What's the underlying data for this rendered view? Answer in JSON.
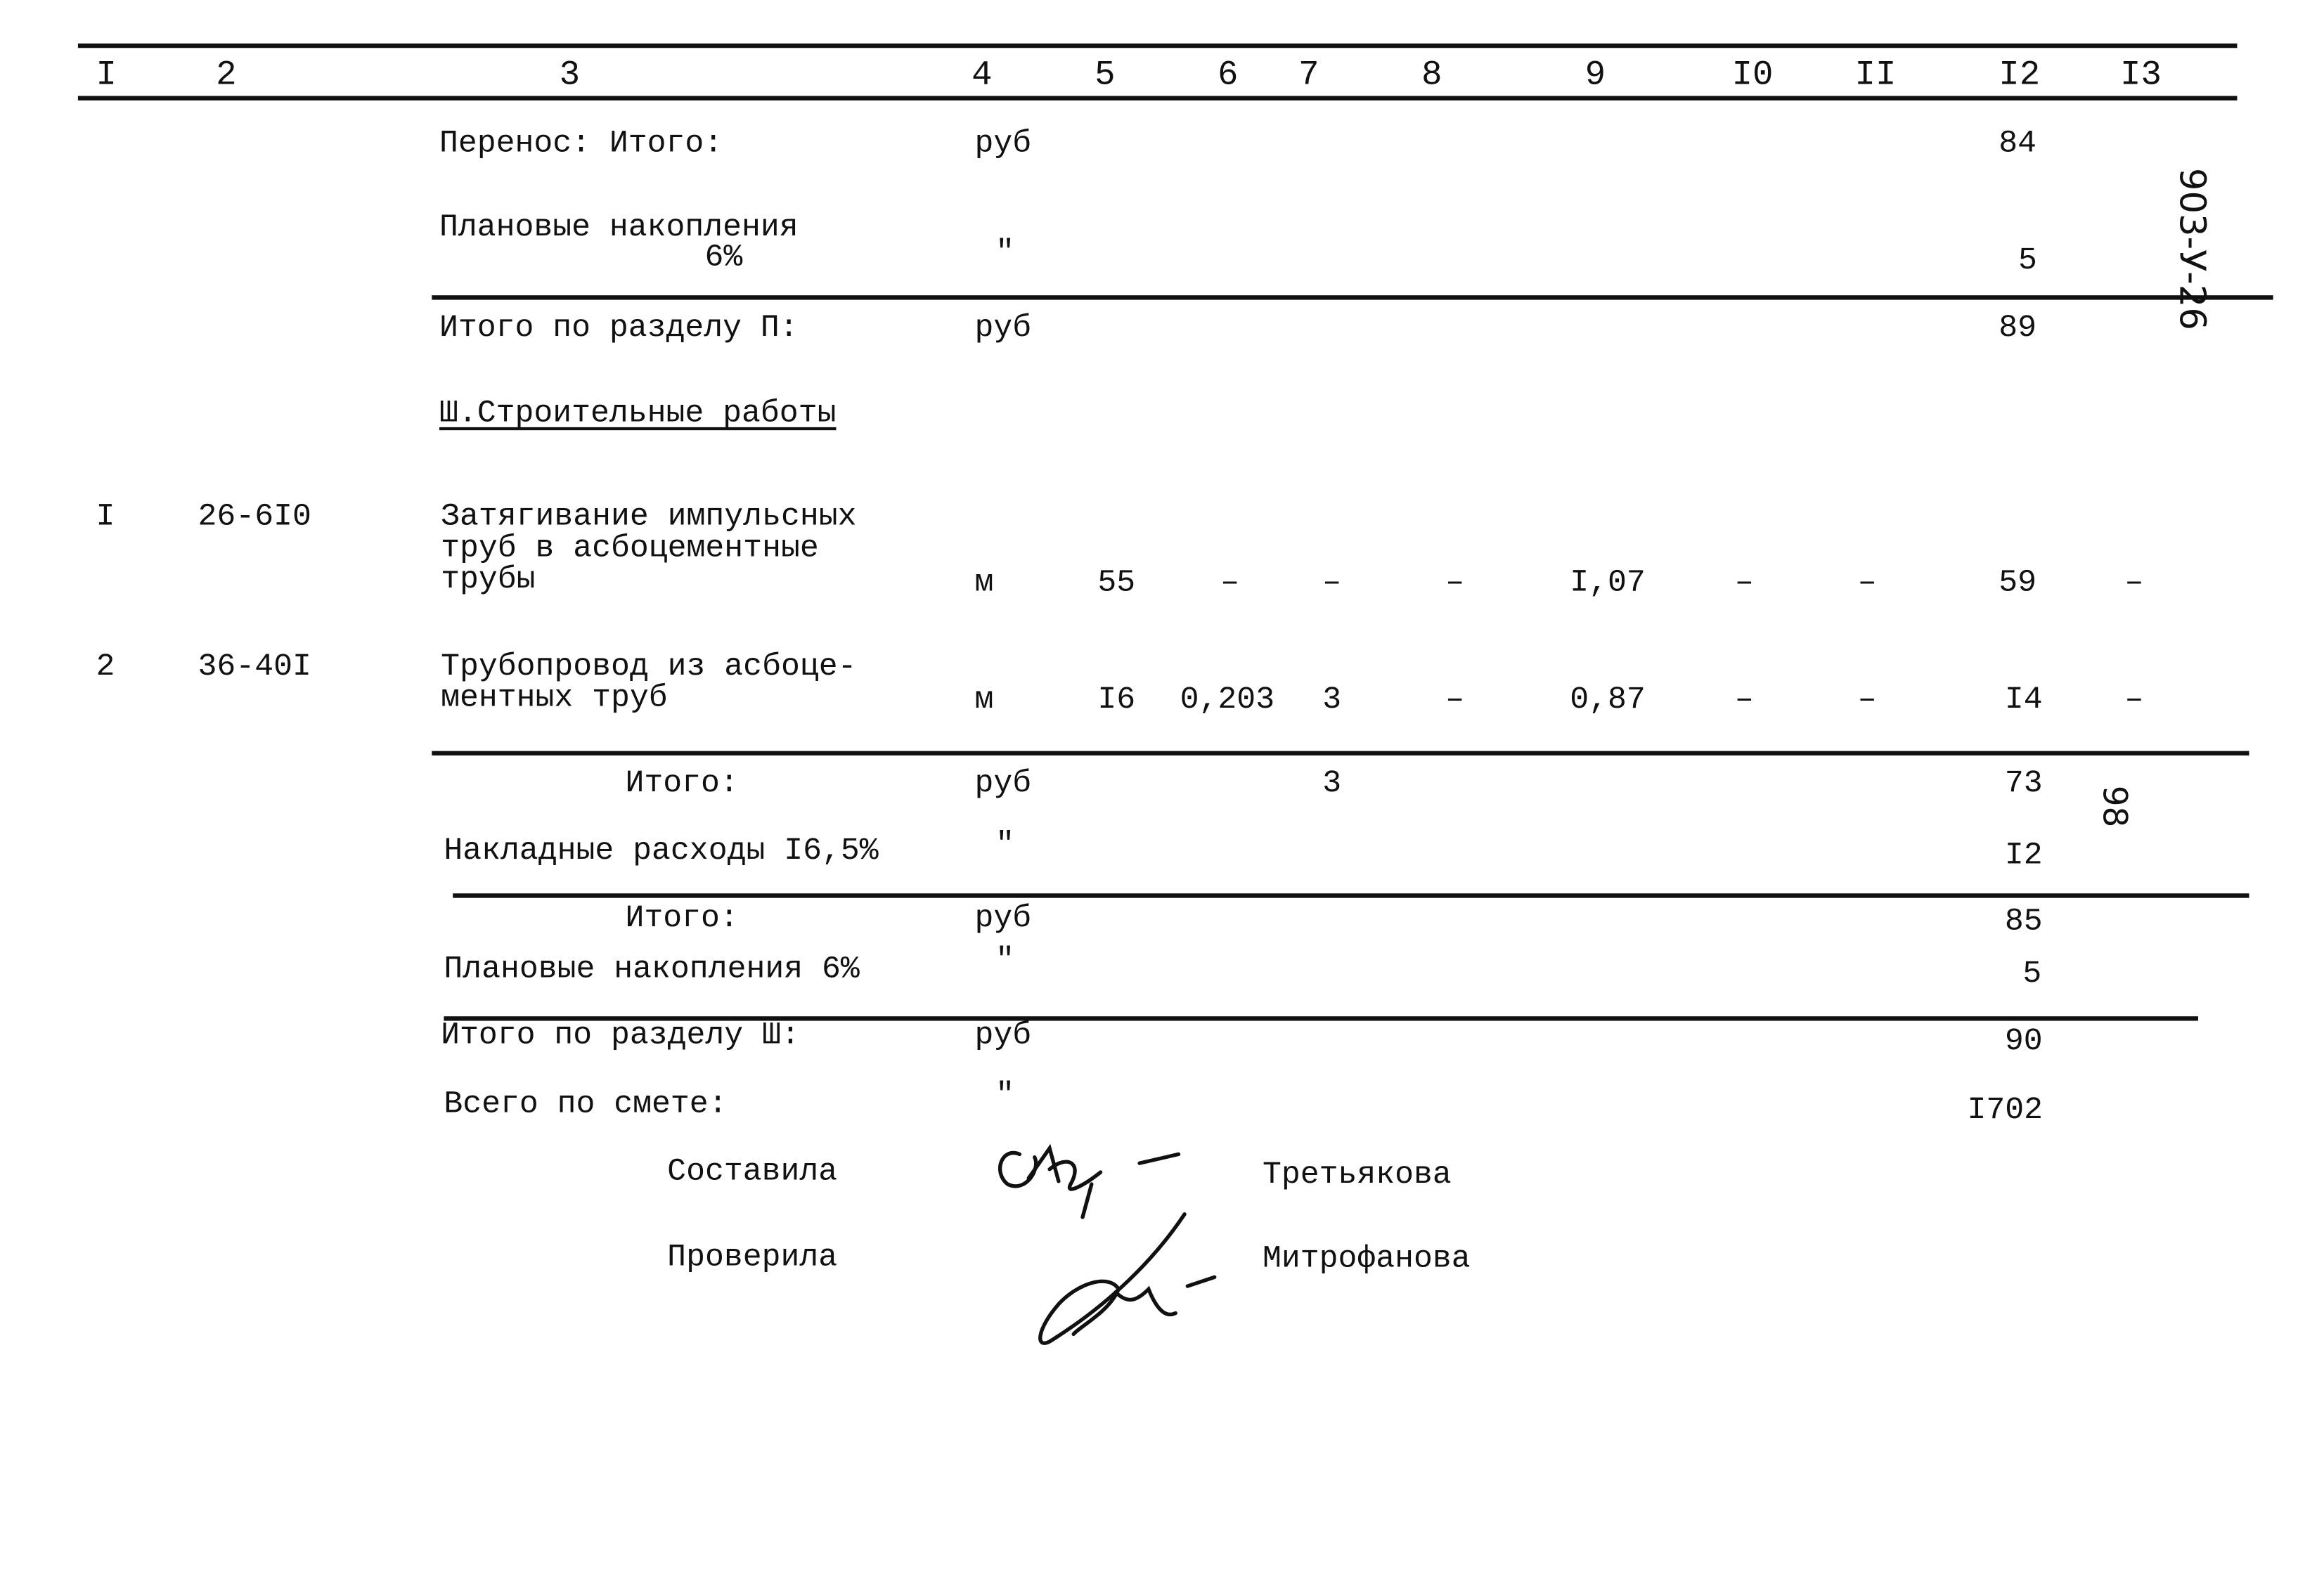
{
  "header": {
    "columns": [
      "I",
      "2",
      "3",
      "4",
      "5",
      "6",
      "7",
      "8",
      "9",
      "I0",
      "II",
      "I2",
      "I3"
    ]
  },
  "section2": {
    "carry_label": "Перенос: Итого:",
    "carry_unit": "руб",
    "carry_total": "84",
    "planned_label_1": "Плановые накопления",
    "planned_label_2": "6%",
    "planned_unit": "\"",
    "planned_value": "5",
    "total_label": "Итого по разделу П:",
    "total_unit": "руб",
    "total_value": "89"
  },
  "side_code": "903-У-26",
  "section3": {
    "title": "Ш.Строительные работы",
    "rows": [
      {
        "no": "I",
        "code": "26-6I0",
        "name": [
          "Затягивание импульсных",
          "труб в асбоцементные",
          "трубы"
        ],
        "unit": "м",
        "c5": "55",
        "c6": "–",
        "c7": "–",
        "c8": "–",
        "c9": "I,07",
        "c10": "–",
        "c11": "–",
        "c12": "59",
        "c13": "–"
      },
      {
        "no": "2",
        "code": "36-40I",
        "name": [
          "Трубопровод из асбоце-",
          "ментных труб"
        ],
        "unit": "м",
        "c5": "I6",
        "c6": "0,203",
        "c7": "3",
        "c8": "–",
        "c9": "0,87",
        "c10": "–",
        "c11": "–",
        "c12": "I4",
        "c13": "–"
      }
    ],
    "subtotal_label": "Итого:",
    "subtotal_unit": "руб",
    "subtotal_c7": "3",
    "subtotal_value": "73",
    "margin_note": "98",
    "overhead_label": "Накладные расходы I6,5%",
    "overhead_unit": "\"",
    "overhead_value": "I2",
    "subtotal2_label": "Итого:",
    "subtotal2_unit": "руб",
    "subtotal2_value": "85",
    "planned_label": "Плановые накопления 6%",
    "planned_unit": "\"",
    "planned_value": "5",
    "total_label": "Итого по разделу Ш:",
    "total_unit": "руб",
    "total_value": "90"
  },
  "grand_total": {
    "label": "Всего по смете:",
    "unit": "\"",
    "value": "I702"
  },
  "signatures": {
    "compiled_label": "Составила",
    "compiled_name": "Третьякова",
    "checked_label": "Проверила",
    "checked_name": "Митрофанова"
  }
}
